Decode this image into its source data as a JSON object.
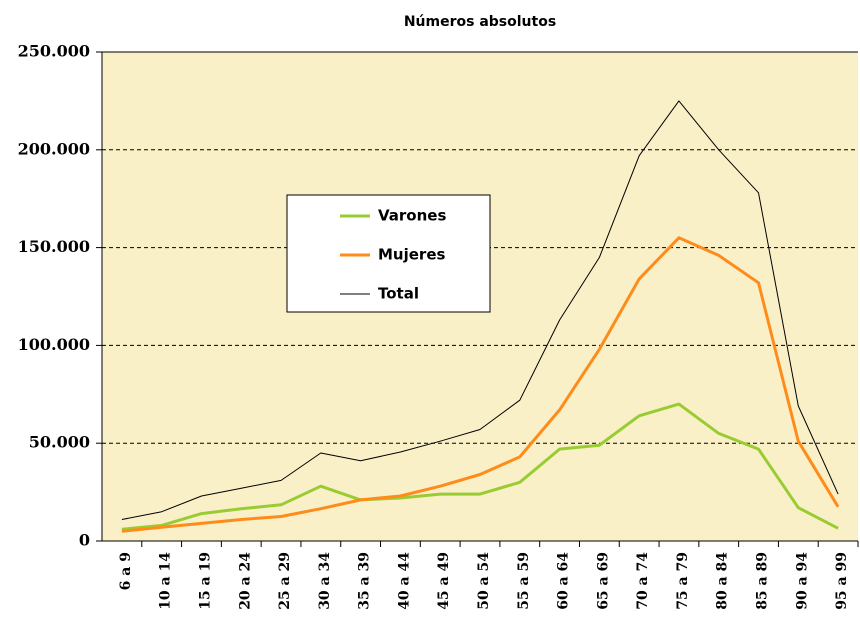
{
  "chart_data": {
    "type": "line",
    "title": "Números absolutos",
    "categories": [
      "6 a 9",
      "10 a 14",
      "15 a 19",
      "20 a 24",
      "25 a 29",
      "30 a 34",
      "35 a 39",
      "40 a 44",
      "45 a 49",
      "50 a 54",
      "55 a 59",
      "60 a 64",
      "65 a 69",
      "70 a 74",
      "75 a 79",
      "80 a 84",
      "85 a 89",
      "90 a 94",
      "95 a 99"
    ],
    "series": [
      {
        "name": "Varones",
        "color": "#99cc33",
        "width": 3,
        "values": [
          6000,
          8000,
          14000,
          16500,
          18500,
          28000,
          21000,
          22000,
          24000,
          24000,
          30000,
          47000,
          49000,
          64000,
          70000,
          55000,
          47000,
          17000,
          6500
        ]
      },
      {
        "name": "Mujeres",
        "color": "#ff8c1a",
        "width": 3,
        "values": [
          5000,
          7000,
          9000,
          11000,
          12500,
          16500,
          21000,
          23000,
          28000,
          34000,
          43000,
          67000,
          98000,
          134000,
          155000,
          146000,
          132000,
          51000,
          17500
        ]
      },
      {
        "name": "Total",
        "color": "#000000",
        "width": 1,
        "values": [
          11000,
          15000,
          23000,
          27000,
          31000,
          45000,
          41000,
          45500,
          51000,
          57000,
          72000,
          113000,
          145000,
          197000,
          225000,
          200000,
          178000,
          69000,
          24000
        ]
      }
    ],
    "ylim": [
      0,
      250000
    ],
    "yticks": [
      0,
      {
        "value": 50000,
        "label": "50.000"
      },
      {
        "value": 100000,
        "label": "100.000"
      },
      {
        "value": 150000,
        "label": "150.000"
      },
      {
        "value": 200000,
        "label": "200.000"
      },
      {
        "value": 250000,
        "label": "250.000"
      }
    ],
    "grid": true,
    "background": "#faf0c8"
  }
}
